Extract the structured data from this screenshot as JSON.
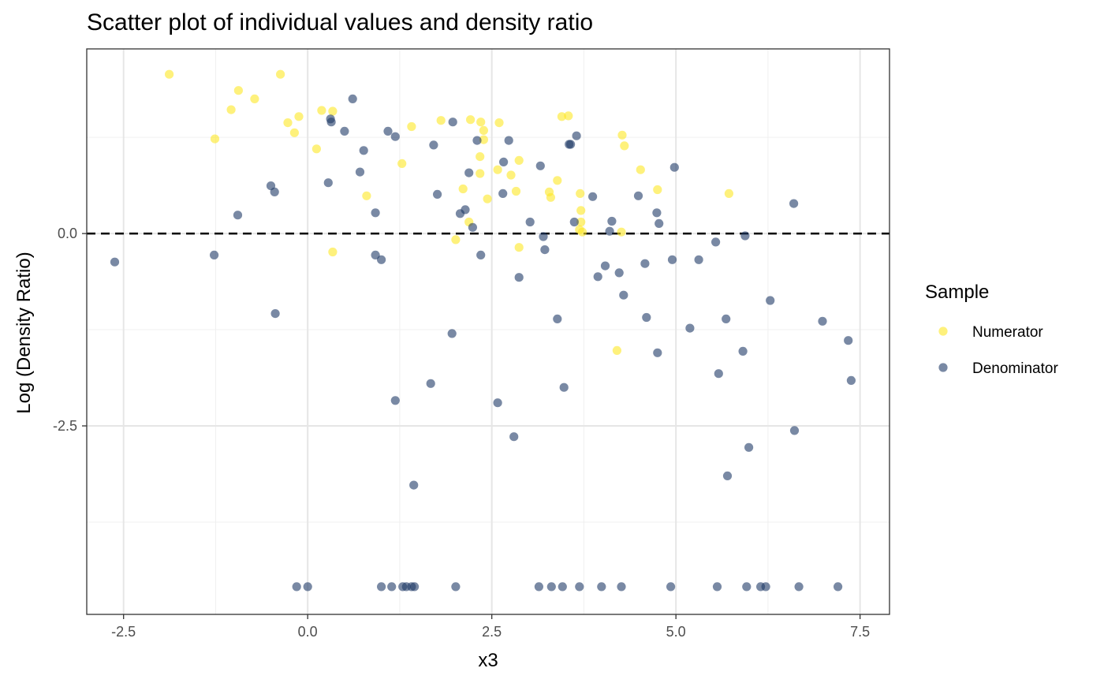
{
  "chart_data": {
    "type": "scatter",
    "title": "Scatter plot of individual values and density ratio",
    "xlabel": "x3",
    "ylabel": "Log (Density Ratio)",
    "xlim": [
      -3.0,
      7.9
    ],
    "ylim": [
      -4.95,
      2.4
    ],
    "x_ticks": [
      -2.5,
      0.0,
      2.5,
      5.0,
      7.5
    ],
    "x_tick_labels": [
      "-2.5",
      "0.0",
      "2.5",
      "5.0",
      "7.5"
    ],
    "y_ticks": [
      0.0,
      -2.5
    ],
    "y_tick_labels": [
      "0.0",
      "-2.5"
    ],
    "y_minor_gridlines": [
      1.25,
      -1.25,
      -3.75
    ],
    "reference_line": {
      "y": 0.0,
      "style": "dashed",
      "color": "#000000"
    },
    "grid": true,
    "legend": {
      "title": "Sample",
      "position": "right",
      "entries": [
        {
          "label": "Numerator",
          "color": "#FDE725"
        },
        {
          "label": "Denominator",
          "color": "#1F3A68"
        }
      ]
    },
    "series": [
      {
        "name": "Numerator",
        "color": "#FDE725",
        "points": [
          [
            -1.88,
            2.07
          ],
          [
            -0.37,
            2.07
          ],
          [
            -0.94,
            1.86
          ],
          [
            -0.72,
            1.75
          ],
          [
            -1.04,
            1.61
          ],
          [
            0.19,
            1.6
          ],
          [
            0.34,
            1.59
          ],
          [
            -0.12,
            1.52
          ],
          [
            -0.27,
            1.44
          ],
          [
            -0.18,
            1.31
          ],
          [
            -1.26,
            1.23
          ],
          [
            0.12,
            1.1
          ],
          [
            1.28,
            0.91
          ],
          [
            0.8,
            0.49
          ],
          [
            0.34,
            -0.24
          ],
          [
            1.41,
            1.39
          ],
          [
            1.81,
            1.47
          ],
          [
            2.21,
            1.48
          ],
          [
            2.35,
            1.45
          ],
          [
            2.39,
            1.34
          ],
          [
            2.6,
            1.44
          ],
          [
            2.39,
            1.22
          ],
          [
            2.34,
            1.0
          ],
          [
            2.58,
            0.83
          ],
          [
            2.34,
            0.78
          ],
          [
            2.76,
            0.76
          ],
          [
            2.87,
            0.95
          ],
          [
            2.11,
            0.58
          ],
          [
            2.44,
            0.45
          ],
          [
            2.83,
            0.55
          ],
          [
            2.19,
            0.15
          ],
          [
            2.01,
            -0.08
          ],
          [
            2.87,
            -0.18
          ],
          [
            3.45,
            1.52
          ],
          [
            3.54,
            1.53
          ],
          [
            3.39,
            0.69
          ],
          [
            3.28,
            0.54
          ],
          [
            3.3,
            0.47
          ],
          [
            3.7,
            0.52
          ],
          [
            3.71,
            0.3
          ],
          [
            3.71,
            0.15
          ],
          [
            3.69,
            0.05
          ],
          [
            3.73,
            0.02
          ],
          [
            4.27,
            1.28
          ],
          [
            4.3,
            1.14
          ],
          [
            4.52,
            0.83
          ],
          [
            4.75,
            0.57
          ],
          [
            4.26,
            0.02
          ],
          [
            4.2,
            -1.52
          ],
          [
            5.72,
            0.52
          ]
        ]
      },
      {
        "name": "Denominator",
        "color": "#1F3A68",
        "points": [
          [
            -2.62,
            -0.37
          ],
          [
            -1.27,
            -0.28
          ],
          [
            -0.95,
            0.24
          ],
          [
            -0.5,
            0.62
          ],
          [
            -0.45,
            0.54
          ],
          [
            -0.44,
            -1.04
          ],
          [
            0.28,
            0.66
          ],
          [
            0.31,
            1.49
          ],
          [
            0.32,
            1.45
          ],
          [
            0.5,
            1.33
          ],
          [
            0.61,
            1.75
          ],
          [
            0.71,
            0.8
          ],
          [
            0.76,
            1.08
          ],
          [
            0.92,
            0.27
          ],
          [
            0.92,
            -0.28
          ],
          [
            1.0,
            -0.34
          ],
          [
            1.09,
            1.33
          ],
          [
            1.19,
            1.26
          ],
          [
            1.19,
            -2.17
          ],
          [
            1.44,
            -3.27
          ],
          [
            1.67,
            -1.95
          ],
          [
            1.71,
            1.15
          ],
          [
            1.76,
            0.51
          ],
          [
            1.96,
            -1.3
          ],
          [
            1.97,
            1.45
          ],
          [
            2.07,
            0.26
          ],
          [
            2.14,
            0.31
          ],
          [
            2.19,
            0.79
          ],
          [
            2.24,
            0.08
          ],
          [
            2.3,
            1.21
          ],
          [
            2.35,
            -0.28
          ],
          [
            2.58,
            -2.2
          ],
          [
            2.65,
            0.52
          ],
          [
            2.66,
            0.93
          ],
          [
            2.73,
            1.21
          ],
          [
            2.8,
            -2.64
          ],
          [
            2.87,
            -0.57
          ],
          [
            3.02,
            0.15
          ],
          [
            3.16,
            0.88
          ],
          [
            3.2,
            -0.04
          ],
          [
            3.22,
            -0.21
          ],
          [
            3.39,
            -1.11
          ],
          [
            3.48,
            -2.0
          ],
          [
            3.55,
            1.16
          ],
          [
            3.57,
            1.16
          ],
          [
            3.62,
            0.15
          ],
          [
            3.65,
            1.27
          ],
          [
            3.87,
            0.48
          ],
          [
            3.94,
            -0.56
          ],
          [
            4.04,
            -0.42
          ],
          [
            4.1,
            0.03
          ],
          [
            4.13,
            0.16
          ],
          [
            4.23,
            -0.51
          ],
          [
            4.29,
            -0.8
          ],
          [
            4.49,
            0.49
          ],
          [
            4.58,
            -0.39
          ],
          [
            4.6,
            -1.09
          ],
          [
            4.74,
            0.27
          ],
          [
            4.75,
            -1.55
          ],
          [
            4.77,
            0.13
          ],
          [
            4.95,
            -0.34
          ],
          [
            4.98,
            0.86
          ],
          [
            5.19,
            -1.23
          ],
          [
            5.31,
            -0.34
          ],
          [
            5.54,
            -0.11
          ],
          [
            5.58,
            -1.82
          ],
          [
            5.68,
            -1.11
          ],
          [
            5.7,
            -3.15
          ],
          [
            5.91,
            -1.53
          ],
          [
            5.94,
            -0.03
          ],
          [
            5.99,
            -2.78
          ],
          [
            6.28,
            -0.87
          ],
          [
            6.6,
            0.39
          ],
          [
            6.61,
            -2.56
          ],
          [
            6.99,
            -1.14
          ],
          [
            7.34,
            -1.39
          ],
          [
            7.38,
            -1.91
          ],
          [
            -0.15,
            -4.59
          ],
          [
            0.0,
            -4.59
          ],
          [
            1.0,
            -4.59
          ],
          [
            1.14,
            -4.59
          ],
          [
            1.29,
            -4.59
          ],
          [
            1.34,
            -4.59
          ],
          [
            1.41,
            -4.59
          ],
          [
            1.45,
            -4.59
          ],
          [
            2.01,
            -4.59
          ],
          [
            3.14,
            -4.59
          ],
          [
            3.31,
            -4.59
          ],
          [
            3.46,
            -4.59
          ],
          [
            3.69,
            -4.59
          ],
          [
            3.99,
            -4.59
          ],
          [
            4.26,
            -4.59
          ],
          [
            4.93,
            -4.59
          ],
          [
            5.56,
            -4.59
          ],
          [
            5.96,
            -4.59
          ],
          [
            6.15,
            -4.59
          ],
          [
            6.22,
            -4.59
          ],
          [
            6.67,
            -4.59
          ],
          [
            7.2,
            -4.59
          ]
        ]
      }
    ]
  }
}
